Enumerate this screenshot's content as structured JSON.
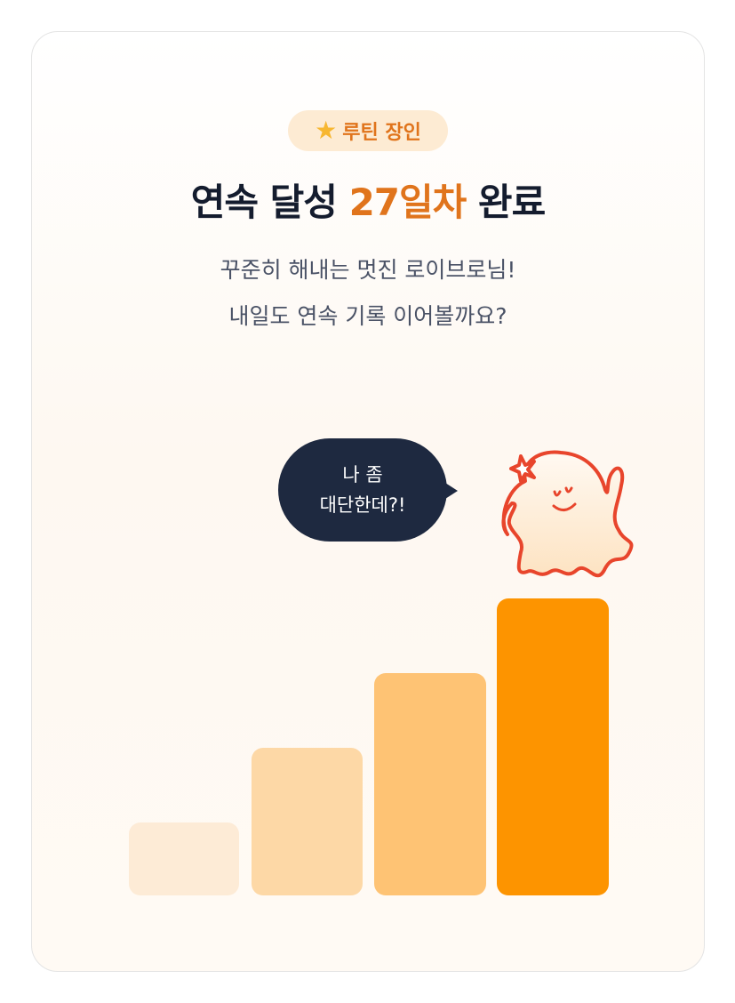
{
  "badge": {
    "icon": "star-icon",
    "label": "루틴 장인"
  },
  "title": {
    "prefix": "연속 달성 ",
    "highlight": "27일차",
    "suffix": " 완료"
  },
  "subtitle": {
    "line1": "꾸준히 해내는 멋진 로이브로님!",
    "line2": "내일도 연속 기록 이어볼까요?"
  },
  "speech_bubble": {
    "line1": "나 좀",
    "line2": "대단한데?!"
  },
  "colors": {
    "accent": "#e0741c",
    "bubble": "#1e2940",
    "bars": [
      "#fdebd6",
      "#fdd8a6",
      "#fec374",
      "#fd9400"
    ],
    "character_outline": "#e8452c"
  }
}
